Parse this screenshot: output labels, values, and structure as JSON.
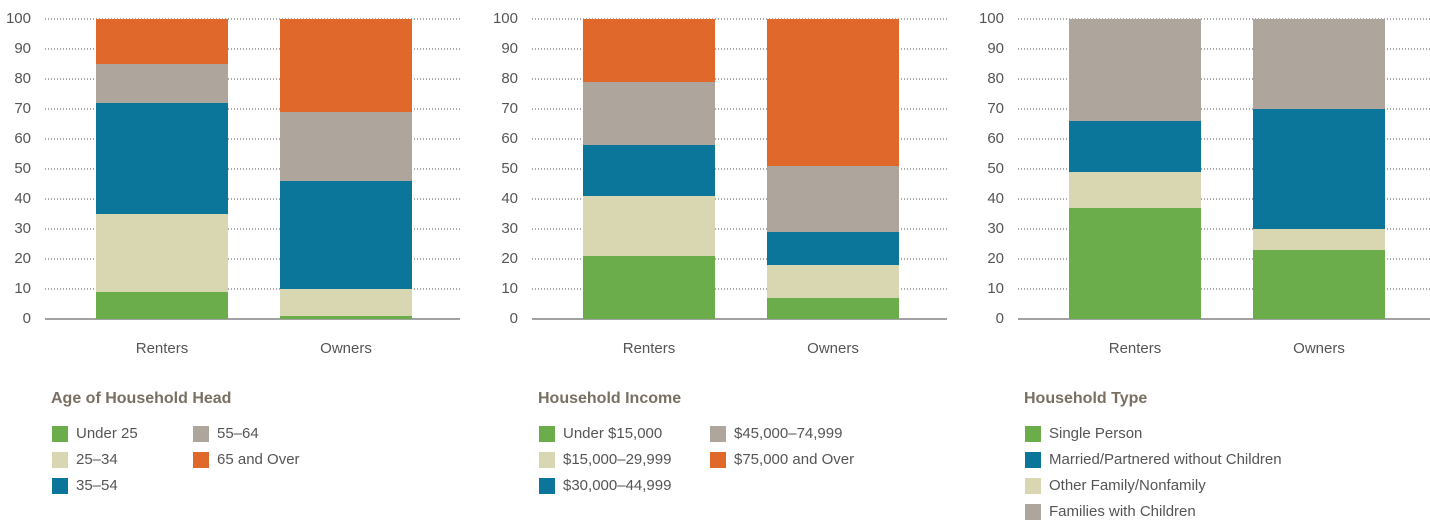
{
  "chart_data": [
    {
      "type": "stacked-bar",
      "title": "Age of Household Head",
      "categories": [
        "Renters",
        "Owners"
      ],
      "series": [
        {
          "name": "Under 25",
          "color": "#6aad4a",
          "values": [
            9,
            1
          ]
        },
        {
          "name": "25–34",
          "color": "#d9d7b1",
          "values": [
            26,
            9
          ]
        },
        {
          "name": "35–54",
          "color": "#0b7699",
          "values": [
            37,
            36
          ]
        },
        {
          "name": "55–64",
          "color": "#aea69c",
          "values": [
            13,
            23
          ]
        },
        {
          "name": "65 and Over",
          "color": "#e0682b",
          "values": [
            15,
            31
          ]
        }
      ],
      "ylim": [
        0,
        100
      ],
      "yticks": [
        0,
        10,
        20,
        30,
        40,
        50,
        60,
        70,
        80,
        90,
        100
      ],
      "grid": true
    },
    {
      "type": "stacked-bar",
      "title": "Household Income",
      "categories": [
        "Renters",
        "Owners"
      ],
      "series": [
        {
          "name": "Under $15,000",
          "color": "#6aad4a",
          "values": [
            21,
            7
          ]
        },
        {
          "name": "$15,000–29,999",
          "color": "#d9d7b1",
          "values": [
            20,
            11
          ]
        },
        {
          "name": "$30,000–44,999",
          "color": "#0b7699",
          "values": [
            17,
            11
          ]
        },
        {
          "name": "$45,000–74,999",
          "color": "#aea69c",
          "values": [
            21,
            22
          ]
        },
        {
          "name": "$75,000 and Over",
          "color": "#e0682b",
          "values": [
            21,
            49
          ]
        }
      ],
      "ylim": [
        0,
        100
      ],
      "yticks": [
        0,
        10,
        20,
        30,
        40,
        50,
        60,
        70,
        80,
        90,
        100
      ],
      "grid": true
    },
    {
      "type": "stacked-bar",
      "title": "Household Type",
      "categories": [
        "Renters",
        "Owners"
      ],
      "series": [
        {
          "name": "Single Person",
          "color": "#6aad4a",
          "values": [
            37,
            23
          ]
        },
        {
          "name": "Other Family/Nonfamily",
          "color": "#d9d7b1",
          "values": [
            12,
            7
          ]
        },
        {
          "name": "Married/Partnered without Children",
          "color": "#0b7699",
          "values": [
            17,
            40
          ]
        },
        {
          "name": "Families with Children",
          "color": "#aea69c",
          "values": [
            34,
            30
          ]
        }
      ],
      "ylim": [
        0,
        100
      ],
      "yticks": [
        0,
        10,
        20,
        30,
        40,
        50,
        60,
        70,
        80,
        90,
        100
      ],
      "grid": true
    }
  ]
}
